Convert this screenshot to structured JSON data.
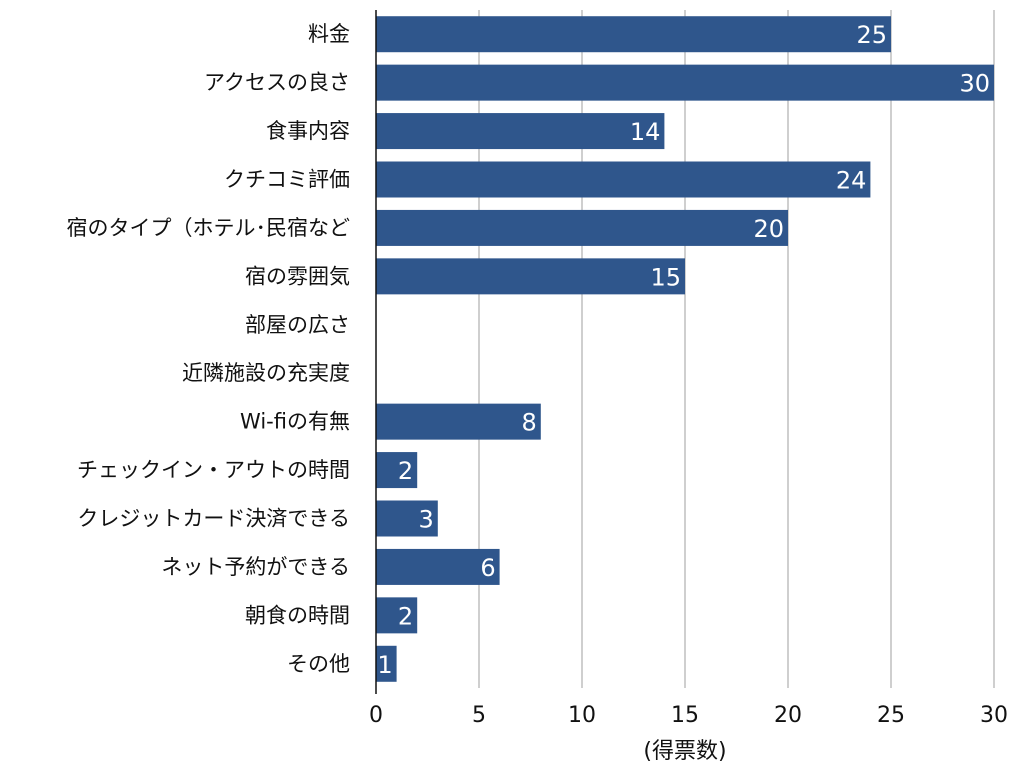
{
  "chart_data": {
    "type": "bar",
    "orientation": "horizontal",
    "categories": [
      "料金",
      "アクセスの良さ",
      "食事内容",
      "クチコミ評価",
      "宿のタイプ（ホテル･民宿など",
      "宿の雰囲気",
      "部屋の広さ",
      "近隣施設の充実度",
      "Wi-fiの有無",
      "チェックイン・アウトの時間",
      "クレジットカード決済できる",
      "ネット予約ができる",
      "朝食の時間",
      "その他"
    ],
    "values": [
      25,
      30,
      14,
      24,
      20,
      15,
      null,
      null,
      8,
      2,
      3,
      6,
      2,
      1
    ],
    "value_labels": [
      "25",
      "30",
      "14",
      "24",
      "20",
      "15",
      "",
      "",
      "8",
      "2",
      "3",
      "6",
      "2",
      "1"
    ],
    "xlabel": "(得票数)",
    "xlim": [
      0,
      30
    ],
    "xticks": [
      0,
      5,
      10,
      15,
      20,
      25,
      30
    ],
    "xtick_labels": [
      "0",
      "5",
      "10",
      "15",
      "20",
      "25",
      "30"
    ],
    "grid": true,
    "bar_color": "#2f568c",
    "grid_color": "#bfbfbf"
  }
}
